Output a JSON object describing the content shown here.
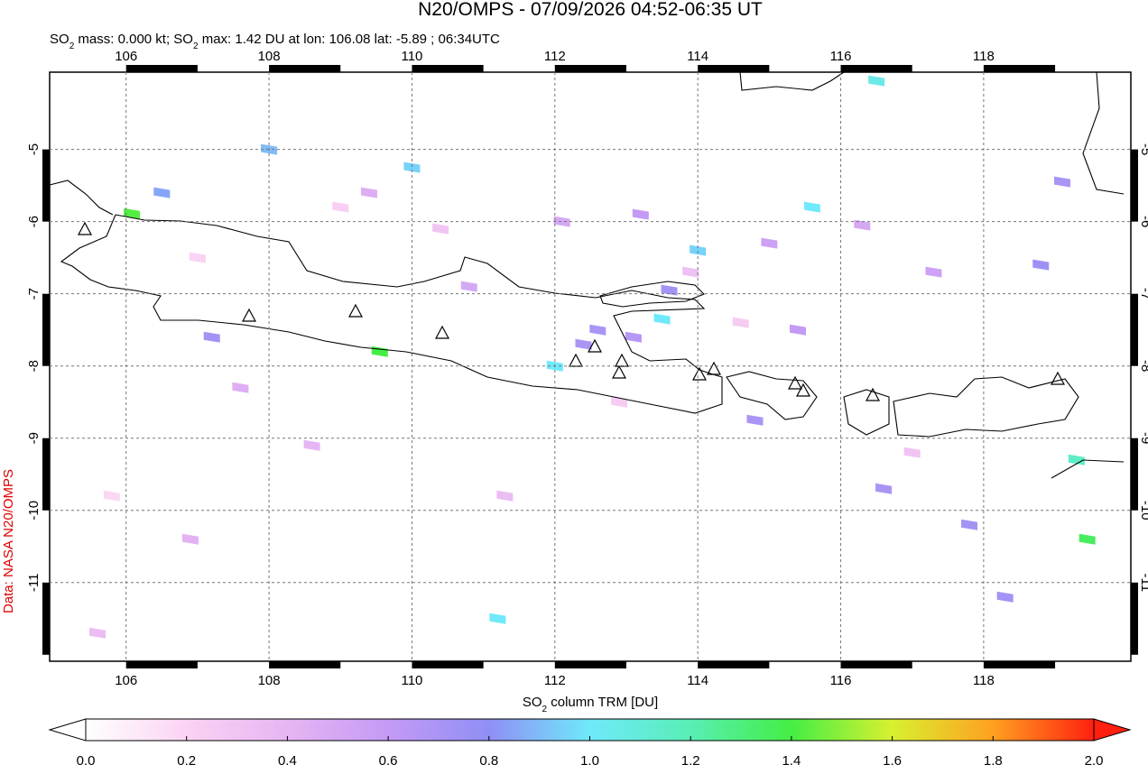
{
  "chart_data": {
    "type": "map",
    "title": "N20/OMPS - 07/09/2026 04:52-06:35 UT",
    "subtitle_parts": [
      "SO",
      "2",
      " mass: 0.000 kt; SO",
      "2",
      " max: 1.42 DU at lon: 106.08 lat: -5.89 ; 06:34UTC"
    ],
    "side_label": "Data: NASA N20/OMPS",
    "xlim": [
      104.93,
      120.06
    ],
    "ylim": [
      -12.09,
      -3.93
    ],
    "xticks": [
      106,
      108,
      110,
      112,
      114,
      116,
      118
    ],
    "yticks": [
      -5,
      -6,
      -7,
      -8,
      -9,
      -10,
      -11
    ],
    "grid": true,
    "colorbar": {
      "label_parts": [
        "SO",
        "2",
        " column TRM [DU]"
      ],
      "range": [
        0.0,
        2.0
      ],
      "ticks": [
        {
          "value": 0,
          "label": "0.0"
        },
        0.2,
        0.4,
        0.6,
        0.8,
        {
          "value": 1,
          "label": "1.0"
        },
        1.2,
        1.4,
        1.6,
        1.8,
        {
          "value": 2,
          "label": "2.0"
        }
      ]
    },
    "pixels": {
      "lon": [
        106.08,
        119.3,
        119.45,
        109.55,
        112.0,
        113.5,
        115.6,
        116.5,
        114.0,
        113.6,
        112.4,
        111.2,
        110.0,
        108.0,
        106.5,
        107.2,
        112.6,
        113.1,
        114.8,
        115.4,
        116.6,
        117.8,
        118.8,
        119.1,
        117.3,
        116.3,
        115.0,
        113.2,
        112.1,
        110.8,
        109.4,
        108.6,
        107.6,
        106.9,
        105.6,
        111.3,
        110.4,
        113.9,
        117.0,
        118.3,
        114.6,
        112.9,
        109.0,
        107.0,
        105.8
      ],
      "lat": [
        -5.89,
        -9.3,
        -10.4,
        -7.8,
        -8.0,
        -7.35,
        -5.8,
        -4.05,
        -6.4,
        -6.95,
        -7.7,
        -11.5,
        -5.25,
        -5.0,
        -5.6,
        -7.6,
        -7.5,
        -7.6,
        -8.75,
        -7.5,
        -9.7,
        -10.2,
        -6.6,
        -5.45,
        -6.7,
        -6.05,
        -6.3,
        -5.9,
        -6.0,
        -6.9,
        -5.6,
        -9.1,
        -8.3,
        -10.4,
        -11.7,
        -9.8,
        -6.1,
        -6.7,
        -9.2,
        -11.2,
        -7.4,
        -8.5,
        -5.8,
        -6.5,
        -9.8
      ],
      "values": [
        1.42,
        1.15,
        1.35,
        1.4,
        1.0,
        1.0,
        1.0,
        1.05,
        0.95,
        0.72,
        0.7,
        1.0,
        0.95,
        0.9,
        0.85,
        0.72,
        0.7,
        0.65,
        0.7,
        0.6,
        0.7,
        0.72,
        0.75,
        0.7,
        0.55,
        0.5,
        0.55,
        0.6,
        0.5,
        0.5,
        0.45,
        0.4,
        0.45,
        0.42,
        0.35,
        0.35,
        0.3,
        0.32,
        0.3,
        0.72,
        0.25,
        0.25,
        0.22,
        0.2,
        0.18
      ]
    }
  }
}
